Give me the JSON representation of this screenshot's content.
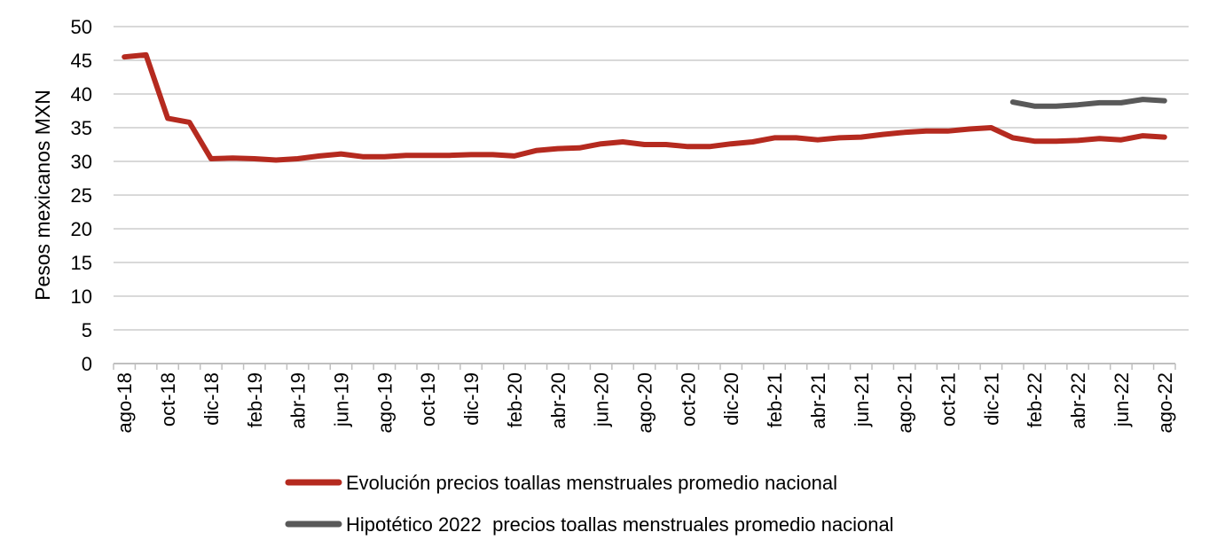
{
  "chart_data": {
    "type": "line",
    "title": "",
    "xlabel": "",
    "ylabel": "Pesos mexicanos MXN",
    "ylim": [
      0,
      50
    ],
    "yticks": [
      0,
      5,
      10,
      15,
      20,
      25,
      30,
      35,
      40,
      45,
      50
    ],
    "grid": true,
    "legend_position": "bottom",
    "x": [
      "ago-18",
      "sep-18",
      "oct-18",
      "nov-18",
      "dic-18",
      "ene-19",
      "feb-19",
      "mar-19",
      "abr-19",
      "may-19",
      "jun-19",
      "jul-19",
      "ago-19",
      "sep-19",
      "oct-19",
      "nov-19",
      "dic-19",
      "ene-20",
      "feb-20",
      "mar-20",
      "abr-20",
      "may-20",
      "jun-20",
      "jul-20",
      "ago-20",
      "sep-20",
      "oct-20",
      "nov-20",
      "dic-20",
      "ene-21",
      "feb-21",
      "mar-21",
      "abr-21",
      "may-21",
      "jun-21",
      "jul-21",
      "ago-21",
      "sep-21",
      "oct-21",
      "nov-21",
      "dic-21",
      "ene-22",
      "feb-22",
      "mar-22",
      "abr-22",
      "may-22",
      "jun-22",
      "jul-22",
      "ago-22"
    ],
    "xtick_labels": [
      "ago-18",
      "oct-18",
      "dic-18",
      "feb-19",
      "abr-19",
      "jun-19",
      "ago-19",
      "oct-19",
      "dic-19",
      "feb-20",
      "abr-20",
      "jun-20",
      "ago-20",
      "oct-20",
      "dic-20",
      "feb-21",
      "abr-21",
      "jun-21",
      "ago-21",
      "oct-21",
      "dic-21",
      "feb-22",
      "abr-22",
      "jun-22",
      "ago-22"
    ],
    "series": [
      {
        "name": "Evolución precios toallas menstruales promedio nacional",
        "color": "#B52A1F",
        "values": [
          45.5,
          45.8,
          36.4,
          35.8,
          30.4,
          30.5,
          30.4,
          30.2,
          30.4,
          30.8,
          31.1,
          30.7,
          30.7,
          30.9,
          30.9,
          30.9,
          31.0,
          31.0,
          30.8,
          31.6,
          31.9,
          32.0,
          32.6,
          32.9,
          32.5,
          32.5,
          32.2,
          32.2,
          32.6,
          32.9,
          33.5,
          33.5,
          33.2,
          33.5,
          33.6,
          34.0,
          34.3,
          34.5,
          34.5,
          34.8,
          35.0,
          33.5,
          33.0,
          33.0,
          33.1,
          33.4,
          33.2,
          33.8,
          33.6
        ]
      },
      {
        "name": "Hipotético 2022  precios toallas menstruales promedio nacional",
        "color": "#595959",
        "values": [
          null,
          null,
          null,
          null,
          null,
          null,
          null,
          null,
          null,
          null,
          null,
          null,
          null,
          null,
          null,
          null,
          null,
          null,
          null,
          null,
          null,
          null,
          null,
          null,
          null,
          null,
          null,
          null,
          null,
          null,
          null,
          null,
          null,
          null,
          null,
          null,
          null,
          null,
          null,
          null,
          null,
          38.8,
          38.2,
          38.2,
          38.4,
          38.7,
          38.7,
          39.2,
          39.0
        ]
      }
    ]
  }
}
